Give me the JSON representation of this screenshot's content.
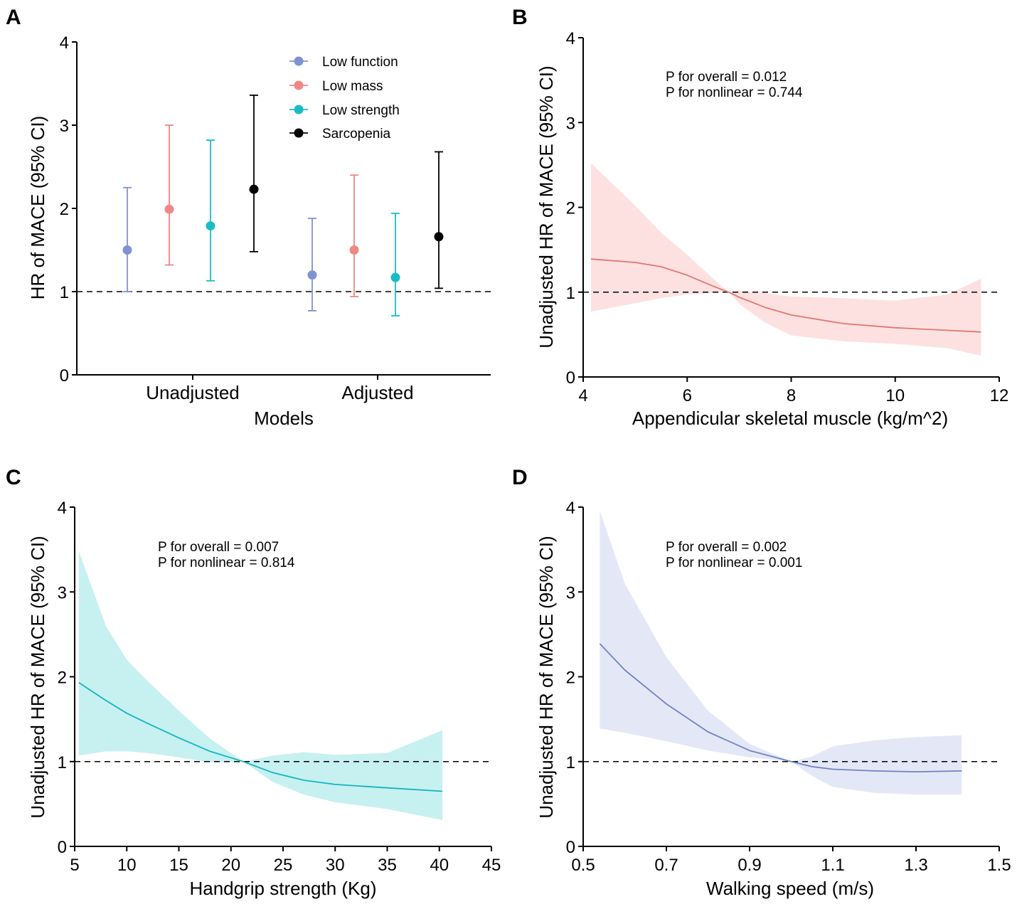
{
  "chart_data": [
    {
      "panel": "A",
      "type": "errorbar",
      "title": "",
      "xlabel": "Models",
      "ylabel": "HR of MACE (95% CI)",
      "categories": [
        "Unadjusted",
        "Adjusted"
      ],
      "ylim": [
        0,
        4
      ],
      "yticks": [
        "0",
        "1",
        "2",
        "3",
        "4"
      ],
      "reference_line": 1,
      "legend_position": "top-center",
      "series": [
        {
          "name": "Low function",
          "color": "#7f93d3",
          "points": [
            {
              "est": 1.5,
              "lo": 1.0,
              "hi": 2.25
            },
            {
              "est": 1.2,
              "lo": 0.77,
              "hi": 1.88
            }
          ]
        },
        {
          "name": "Low mass",
          "color": "#ef8784",
          "points": [
            {
              "est": 1.99,
              "lo": 1.32,
              "hi": 3.0
            },
            {
              "est": 1.5,
              "lo": 0.94,
              "hi": 2.4
            }
          ]
        },
        {
          "name": "Low strength",
          "color": "#19bcc5",
          "points": [
            {
              "est": 1.79,
              "lo": 1.13,
              "hi": 2.82
            },
            {
              "est": 1.17,
              "lo": 0.71,
              "hi": 1.94
            }
          ]
        },
        {
          "name": "Sarcopenia",
          "color": "#000000",
          "points": [
            {
              "est": 2.23,
              "lo": 1.48,
              "hi": 3.36
            },
            {
              "est": 1.66,
              "lo": 1.04,
              "hi": 2.68
            }
          ]
        }
      ]
    },
    {
      "panel": "B",
      "type": "line",
      "xlabel": "Appendicular skeletal muscle (kg/m^2)",
      "ylabel": "Unadjusted HR of MACE (95% CI)",
      "xlim": [
        4,
        12
      ],
      "ylim": [
        0,
        4
      ],
      "xticks": [
        "4",
        "6",
        "8",
        "10",
        "12"
      ],
      "yticks": [
        "0",
        "1",
        "2",
        "3",
        "4"
      ],
      "reference_line": 1,
      "color": "#e07773",
      "band_color": "#fde1e1",
      "annotations": [
        "P for overall = 0.012",
        "P for nonlinear = 0.744"
      ],
      "x": [
        4.15,
        5.0,
        5.5,
        6.0,
        6.5,
        6.8,
        7.0,
        7.5,
        8.0,
        9.0,
        10.0,
        11.0,
        11.65
      ],
      "y": [
        1.39,
        1.35,
        1.3,
        1.2,
        1.07,
        1.0,
        0.94,
        0.82,
        0.73,
        0.63,
        0.58,
        0.55,
        0.53
      ],
      "lower": [
        0.77,
        0.87,
        0.93,
        0.97,
        0.99,
        1.0,
        0.86,
        0.64,
        0.49,
        0.42,
        0.39,
        0.34,
        0.25
      ],
      "upper": [
        2.52,
        2.02,
        1.7,
        1.44,
        1.16,
        1.0,
        1.02,
        0.99,
        0.95,
        0.93,
        0.9,
        0.97,
        1.16
      ]
    },
    {
      "panel": "C",
      "type": "line",
      "xlabel": "Handgrip strength (Kg)",
      "ylabel": "Unadjusted HR of MACE (95% CI)",
      "xlim": [
        5,
        45
      ],
      "ylim": [
        0,
        4
      ],
      "xticks": [
        "5",
        "10",
        "15",
        "20",
        "25",
        "30",
        "35",
        "40",
        "45"
      ],
      "yticks": [
        "0",
        "1",
        "2",
        "3",
        "4"
      ],
      "reference_line": 1,
      "color": "#13b5bd",
      "band_color": "#c7f0f1",
      "annotations": [
        "P for overall = 0.007",
        "P for nonlinear = 0.814"
      ],
      "x": [
        5.4,
        8,
        10,
        12,
        15,
        18,
        21.2,
        24,
        27,
        30,
        35,
        40.3
      ],
      "y": [
        1.93,
        1.72,
        1.57,
        1.45,
        1.28,
        1.12,
        1.0,
        0.87,
        0.78,
        0.73,
        0.69,
        0.65
      ],
      "lower": [
        1.07,
        1.12,
        1.12,
        1.1,
        1.05,
        0.99,
        1.0,
        0.76,
        0.61,
        0.52,
        0.44,
        0.31
      ],
      "upper": [
        3.48,
        2.6,
        2.2,
        1.95,
        1.6,
        1.27,
        1.0,
        1.07,
        1.11,
        1.08,
        1.1,
        1.37
      ]
    },
    {
      "panel": "D",
      "type": "line",
      "xlabel": "Walking speed (m/s)",
      "ylabel": "Unadjusted HR of MACE (95% CI)",
      "xlim": [
        0.5,
        1.5
      ],
      "ylim": [
        0,
        4
      ],
      "xticks": [
        "0.5",
        "0.7",
        "0.9",
        "1.1",
        "1.3",
        "1.5"
      ],
      "yticks": [
        "0",
        "1",
        "2",
        "3",
        "4"
      ],
      "reference_line": 1,
      "color": "#6f83c4",
      "band_color": "#e4e8f6",
      "annotations": [
        "P for overall = 0.002",
        "P for nonlinear = 0.001"
      ],
      "x": [
        0.54,
        0.6,
        0.7,
        0.8,
        0.9,
        1.0,
        1.05,
        1.1,
        1.2,
        1.3,
        1.41
      ],
      "y": [
        2.39,
        2.08,
        1.68,
        1.35,
        1.13,
        1.0,
        0.94,
        0.91,
        0.89,
        0.88,
        0.89
      ],
      "lower": [
        1.39,
        1.34,
        1.24,
        1.13,
        1.05,
        1.0,
        0.83,
        0.7,
        0.63,
        0.61,
        0.61
      ],
      "upper": [
        3.96,
        3.1,
        2.23,
        1.6,
        1.21,
        1.0,
        1.06,
        1.18,
        1.25,
        1.29,
        1.31
      ]
    }
  ]
}
